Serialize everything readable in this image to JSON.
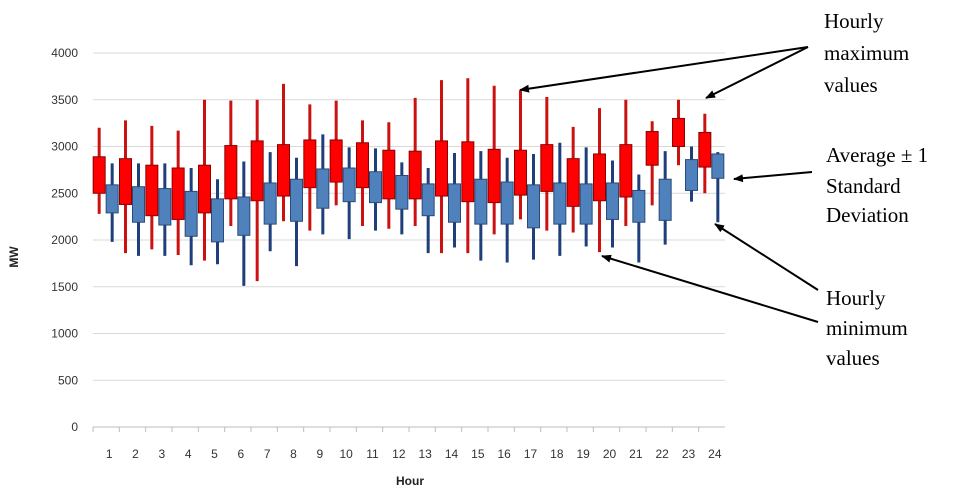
{
  "chart_data": {
    "type": "box",
    "xlabel": "Hour",
    "ylabel": "MW",
    "ylim": [
      0,
      4000
    ],
    "yticks": [
      0,
      500,
      1000,
      1500,
      2000,
      2500,
      3000,
      3500,
      4000
    ],
    "categories": [
      "1",
      "2",
      "3",
      "4",
      "5",
      "6",
      "7",
      "8",
      "9",
      "10",
      "11",
      "12",
      "13",
      "14",
      "15",
      "16",
      "17",
      "18",
      "19",
      "20",
      "21",
      "22",
      "23",
      "24"
    ],
    "grid": "horizontal",
    "series": [
      {
        "color": "#ff0000",
        "whisker_color": "#cc1111",
        "min": [
          2280,
          1860,
          1900,
          1840,
          1780,
          2150,
          1560,
          2200,
          2100,
          2370,
          2150,
          2120,
          2150,
          1860,
          1860,
          2060,
          2220,
          2100,
          2080,
          1870,
          2150,
          2370,
          2800,
          2500
        ],
        "box_low": [
          2500,
          2380,
          2260,
          2220,
          2290,
          2440,
          2420,
          2470,
          2560,
          2620,
          2560,
          2440,
          2440,
          2470,
          2410,
          2400,
          2480,
          2520,
          2360,
          2420,
          2460,
          2800,
          3000,
          2780
        ],
        "box_high": [
          2890,
          2870,
          2800,
          2770,
          2800,
          3010,
          3060,
          3020,
          3070,
          3070,
          3040,
          2960,
          2950,
          3060,
          3050,
          2970,
          2960,
          3020,
          2870,
          2920,
          3020,
          3160,
          3300,
          3150
        ],
        "max": [
          3200,
          3280,
          3220,
          3170,
          3500,
          3490,
          3500,
          3670,
          3450,
          3490,
          3280,
          3260,
          3520,
          3710,
          3730,
          3650,
          3600,
          3530,
          3210,
          3410,
          3500,
          3270,
          3500,
          3350
        ]
      },
      {
        "color": "#4f81bd",
        "whisker_color": "#1f3f7a",
        "min": [
          1980,
          1830,
          1830,
          1730,
          1740,
          1510,
          1880,
          1720,
          2060,
          2010,
          2100,
          2060,
          1860,
          1920,
          1780,
          1760,
          1790,
          1830,
          1930,
          1920,
          1760,
          1950,
          2410,
          2190
        ],
        "box_low": [
          2290,
          2190,
          2160,
          2040,
          1980,
          2050,
          2170,
          2200,
          2340,
          2410,
          2400,
          2330,
          2260,
          2190,
          2170,
          2170,
          2130,
          2170,
          2170,
          2220,
          2190,
          2210,
          2530,
          2660
        ],
        "box_high": [
          2590,
          2570,
          2550,
          2520,
          2440,
          2460,
          2610,
          2650,
          2760,
          2770,
          2730,
          2690,
          2600,
          2600,
          2650,
          2620,
          2590,
          2610,
          2600,
          2610,
          2530,
          2650,
          2860,
          2920
        ],
        "max": [
          2820,
          2820,
          2820,
          2770,
          2650,
          2840,
          2940,
          2880,
          3130,
          2990,
          2980,
          2830,
          2770,
          2930,
          2950,
          2880,
          2920,
          3040,
          2990,
          2850,
          2700,
          2950,
          3000,
          2940
        ]
      }
    ],
    "annotations": [
      {
        "text": [
          "Hourly",
          "maximum",
          "values"
        ]
      },
      {
        "text": [
          "Average ± 1",
          "Standard",
          "Deviation"
        ]
      },
      {
        "text": [
          "Hourly",
          "minimum",
          "values"
        ]
      }
    ]
  }
}
